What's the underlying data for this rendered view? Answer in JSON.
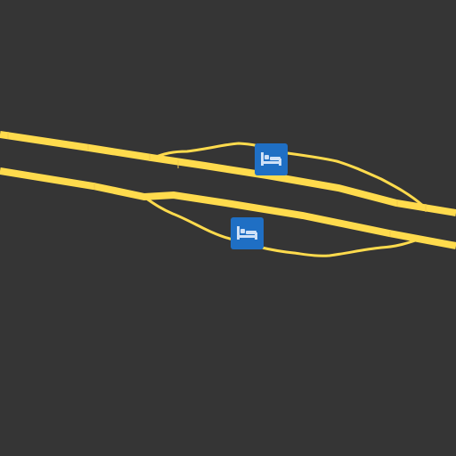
{
  "map": {
    "background_color": "#353535",
    "road_color": "#ffdb4d",
    "poi_color": "#1f6fc4"
  },
  "pois": [
    {
      "name": "hotel-rest-area-north",
      "icon": "bed-icon"
    },
    {
      "name": "hotel-rest-area-south",
      "icon": "bed-icon"
    }
  ]
}
